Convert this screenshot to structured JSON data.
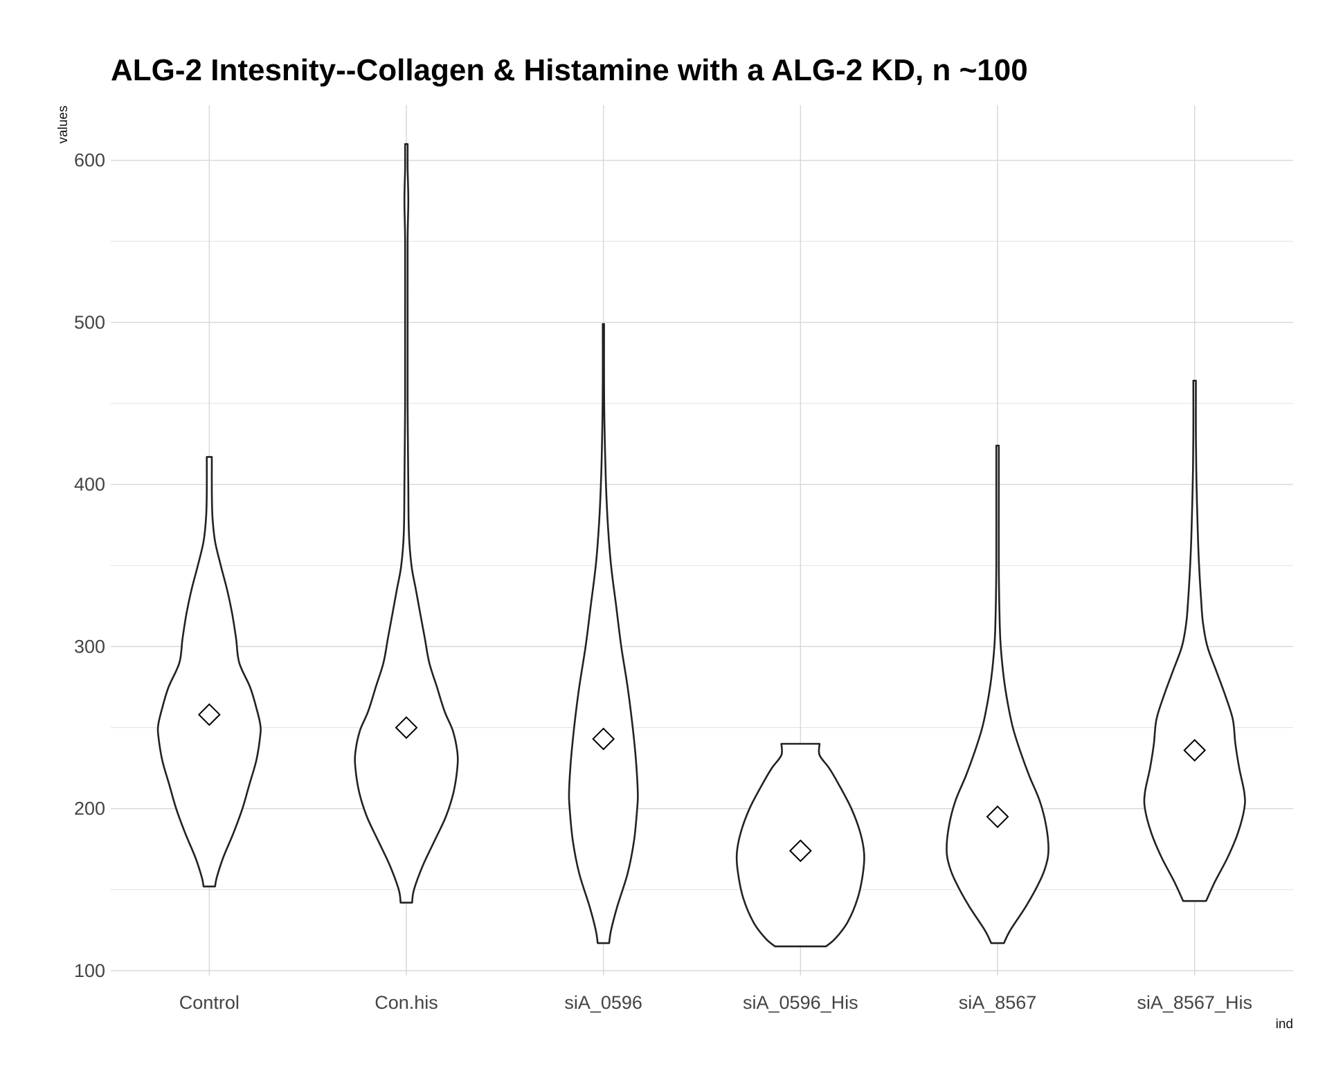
{
  "chart_data": {
    "type": "violin",
    "title": "ALG-2 Intesnity--Collagen & Histamine with a ALG-2 KD, n ~100",
    "xlabel": "ind",
    "ylabel": "values",
    "ylim": [
      97,
      634
    ],
    "yticks": [
      100,
      200,
      300,
      400,
      500,
      600
    ],
    "grid": true,
    "categories": [
      "Control",
      "Con.his",
      "siA_0596",
      "siA_0596_His",
      "siA_8567",
      "siA_8567_His"
    ],
    "series": [
      {
        "category": "Control",
        "mean": 258,
        "min": 152,
        "max": 417,
        "density_profile": [
          [
            152,
            0.09
          ],
          [
            158,
            0.12
          ],
          [
            170,
            0.22
          ],
          [
            185,
            0.38
          ],
          [
            200,
            0.52
          ],
          [
            215,
            0.63
          ],
          [
            230,
            0.74
          ],
          [
            245,
            0.8
          ],
          [
            252,
            0.8
          ],
          [
            262,
            0.74
          ],
          [
            275,
            0.64
          ],
          [
            290,
            0.47
          ],
          [
            305,
            0.42
          ],
          [
            320,
            0.36
          ],
          [
            335,
            0.28
          ],
          [
            350,
            0.18
          ],
          [
            365,
            0.09
          ],
          [
            380,
            0.05
          ],
          [
            395,
            0.04
          ],
          [
            417,
            0.04
          ]
        ]
      },
      {
        "category": "Con.his",
        "mean": 250,
        "min": 142,
        "max": 610,
        "density_profile": [
          [
            142,
            0.09
          ],
          [
            150,
            0.12
          ],
          [
            165,
            0.26
          ],
          [
            180,
            0.44
          ],
          [
            195,
            0.62
          ],
          [
            210,
            0.74
          ],
          [
            225,
            0.8
          ],
          [
            235,
            0.8
          ],
          [
            248,
            0.73
          ],
          [
            260,
            0.6
          ],
          [
            275,
            0.48
          ],
          [
            290,
            0.36
          ],
          [
            305,
            0.29
          ],
          [
            320,
            0.22
          ],
          [
            335,
            0.15
          ],
          [
            350,
            0.08
          ],
          [
            370,
            0.04
          ],
          [
            400,
            0.03
          ],
          [
            450,
            0.02
          ],
          [
            500,
            0.02
          ],
          [
            550,
            0.02
          ],
          [
            575,
            0.03
          ],
          [
            595,
            0.02
          ],
          [
            610,
            0.02
          ]
        ]
      },
      {
        "category": "siA_0596",
        "mean": 243,
        "min": 117,
        "max": 499,
        "density_profile": [
          [
            117,
            0.09
          ],
          [
            125,
            0.12
          ],
          [
            140,
            0.22
          ],
          [
            160,
            0.38
          ],
          [
            180,
            0.48
          ],
          [
            200,
            0.53
          ],
          [
            210,
            0.54
          ],
          [
            230,
            0.51
          ],
          [
            250,
            0.46
          ],
          [
            275,
            0.38
          ],
          [
            300,
            0.28
          ],
          [
            325,
            0.2
          ],
          [
            350,
            0.12
          ],
          [
            375,
            0.07
          ],
          [
            400,
            0.04
          ],
          [
            430,
            0.02
          ],
          [
            460,
            0.01
          ],
          [
            499,
            0.01
          ]
        ]
      },
      {
        "category": "siA_0596_His",
        "mean": 174,
        "min": 115,
        "max": 240,
        "density_profile": [
          [
            115,
            0.4
          ],
          [
            120,
            0.55
          ],
          [
            130,
            0.74
          ],
          [
            145,
            0.9
          ],
          [
            160,
            0.98
          ],
          [
            172,
            1.0
          ],
          [
            185,
            0.94
          ],
          [
            200,
            0.8
          ],
          [
            215,
            0.6
          ],
          [
            225,
            0.45
          ],
          [
            233,
            0.3
          ],
          [
            240,
            0.3
          ]
        ]
      },
      {
        "category": "siA_8567",
        "mean": 195,
        "min": 117,
        "max": 424,
        "density_profile": [
          [
            117,
            0.1
          ],
          [
            125,
            0.2
          ],
          [
            140,
            0.45
          ],
          [
            155,
            0.66
          ],
          [
            165,
            0.76
          ],
          [
            175,
            0.8
          ],
          [
            190,
            0.76
          ],
          [
            205,
            0.66
          ],
          [
            220,
            0.5
          ],
          [
            235,
            0.36
          ],
          [
            250,
            0.24
          ],
          [
            265,
            0.16
          ],
          [
            280,
            0.1
          ],
          [
            300,
            0.05
          ],
          [
            320,
            0.03
          ],
          [
            350,
            0.02
          ],
          [
            400,
            0.02
          ],
          [
            424,
            0.02
          ]
        ]
      },
      {
        "category": "siA_8567_His",
        "mean": 236,
        "min": 143,
        "max": 464,
        "density_profile": [
          [
            143,
            0.18
          ],
          [
            155,
            0.32
          ],
          [
            170,
            0.52
          ],
          [
            185,
            0.68
          ],
          [
            200,
            0.78
          ],
          [
            210,
            0.78
          ],
          [
            225,
            0.7
          ],
          [
            240,
            0.64
          ],
          [
            255,
            0.6
          ],
          [
            270,
            0.48
          ],
          [
            285,
            0.34
          ],
          [
            300,
            0.2
          ],
          [
            315,
            0.13
          ],
          [
            330,
            0.1
          ],
          [
            350,
            0.07
          ],
          [
            370,
            0.05
          ],
          [
            400,
            0.03
          ],
          [
            430,
            0.02
          ],
          [
            464,
            0.02
          ]
        ]
      }
    ]
  }
}
